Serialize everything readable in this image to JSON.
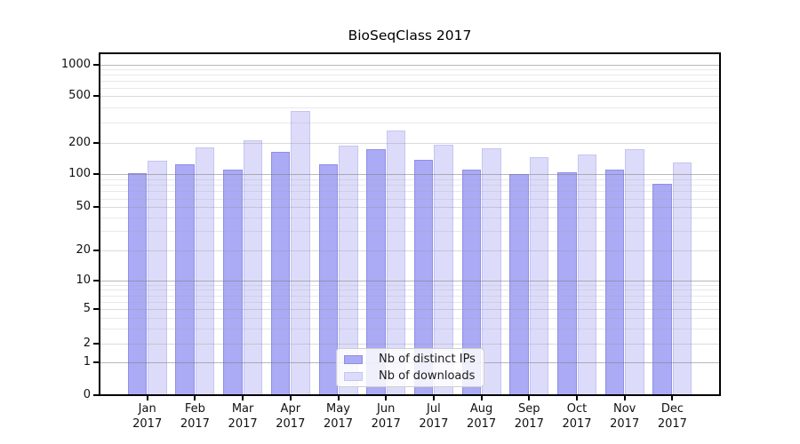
{
  "window": {
    "title": "BioSeqClass 2017"
  },
  "chart_data": {
    "type": "bar",
    "title": "BioSeqClass 2017",
    "categories": [
      "Jan",
      "Feb",
      "Mar",
      "Apr",
      "May",
      "Jun",
      "Jul",
      "Aug",
      "Sep",
      "Oct",
      "Nov",
      "Dec"
    ],
    "category_year": "2017",
    "series": [
      {
        "name": "Nb of distinct IPs",
        "color": "#aaaaf5",
        "edge_color": "rgba(125,125,225,0.6)",
        "values": [
          103,
          125,
          110,
          165,
          125,
          173,
          137,
          110,
          100,
          104,
          110,
          82
        ]
      },
      {
        "name": "Nb of downloads",
        "color": "#dcdcfa",
        "edge_color": "rgba(180,180,238,0.6)",
        "values": [
          135,
          180,
          210,
          375,
          190,
          257,
          194,
          177,
          145,
          155,
          174,
          130
        ]
      }
    ],
    "yticks": [
      0,
      1,
      2,
      5,
      10,
      20,
      50,
      100,
      200,
      500,
      1000
    ],
    "ylim": [
      0,
      1000
    ],
    "yscale": "symlog",
    "xlabel": "",
    "ylabel": "",
    "grid": "horizontal",
    "legend_position": "inside-bottom-center",
    "background_color": "#ffffff",
    "axis_color": "#000000"
  }
}
